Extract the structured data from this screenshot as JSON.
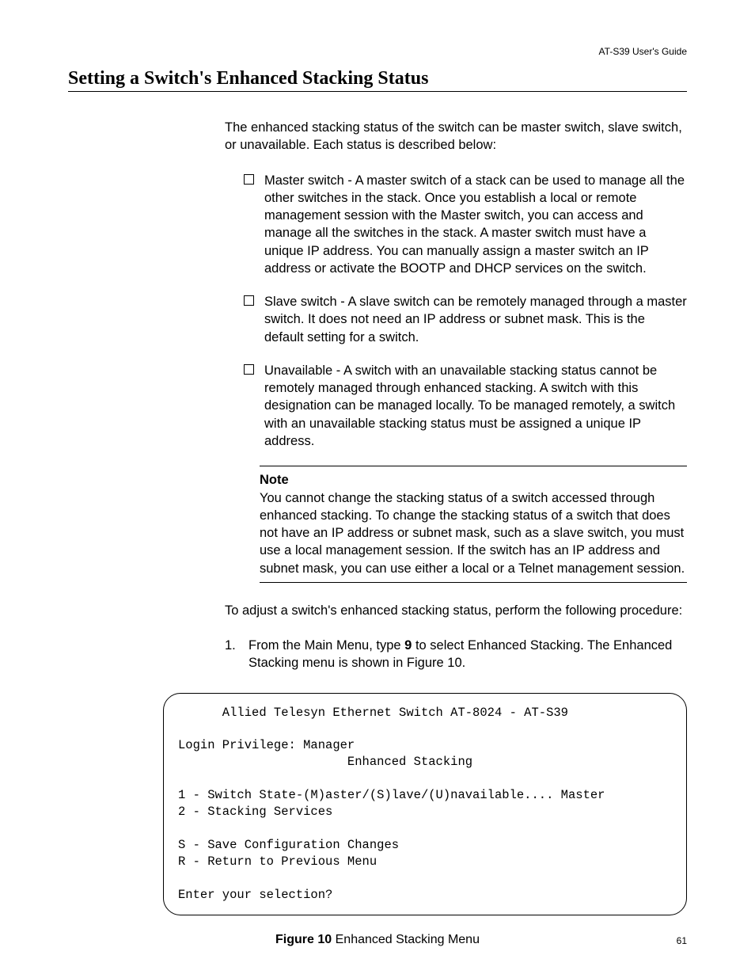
{
  "header": {
    "guide_title": "AT-S39 User's Guide"
  },
  "section": {
    "title": "Setting a Switch's Enhanced Stacking Status"
  },
  "intro": "The enhanced stacking status of the switch can be master switch, slave switch, or unavailable. Each status is described below:",
  "bullets": [
    "Master switch - A master switch of a stack can be used to manage all the other switches in the stack. Once you establish a local or remote management session with the Master switch, you can access and manage all the switches in the stack. A master switch must have a unique IP address. You can manually assign a master switch an IP address or activate the BOOTP and DHCP services on the switch.",
    "Slave switch - A slave switch can be remotely managed through a master switch. It does not need an IP address or subnet mask. This is the default setting for a switch.",
    "Unavailable - A switch with an unavailable stacking status cannot be remotely managed through enhanced stacking. A switch with this designation can be managed locally. To be managed remotely, a switch with an unavailable stacking status must be assigned a unique IP address."
  ],
  "note": {
    "label": "Note",
    "text": "You cannot change the stacking status of a switch accessed through enhanced stacking. To change the stacking status of a switch that does not have an IP address or subnet mask, such as a slave switch, you must use a local management session. If the switch has an IP address and subnet mask, you can use either a local or a Telnet management session."
  },
  "procedure_intro": "To adjust a switch's enhanced stacking status, perform the following procedure:",
  "steps": [
    {
      "num": "1.",
      "before": "From the Main Menu, type ",
      "bold": "9",
      "after": " to select Enhanced Stacking. The Enhanced Stacking menu is shown in Figure 10."
    }
  ],
  "terminal": {
    "title_line": "      Allied Telesyn Ethernet Switch AT-8024 - AT-S39",
    "login_line": "Login Privilege: Manager",
    "menu_title": "                       Enhanced Stacking",
    "option1": "1 - Switch State-(M)aster/(S)lave/(U)navailable.... Master",
    "option2": "2 - Stacking Services",
    "save_line": "S - Save Configuration Changes",
    "return_line": "R - Return to Previous Menu",
    "prompt": "Enter your selection?"
  },
  "figure": {
    "label": "Figure 10",
    "caption": "  Enhanced Stacking Menu"
  },
  "page_number": "61",
  "colors": {
    "background": "#ffffff",
    "text": "#000000",
    "rule": "#000000"
  },
  "typography": {
    "body_font": "Myriad Pro / Segoe UI / Helvetica Neue",
    "title_font": "Palatino / Georgia serif",
    "mono_font": "Courier New",
    "body_size_pt": 12,
    "title_size_pt": 18,
    "header_size_pt": 9,
    "page_num_size_pt": 9
  }
}
